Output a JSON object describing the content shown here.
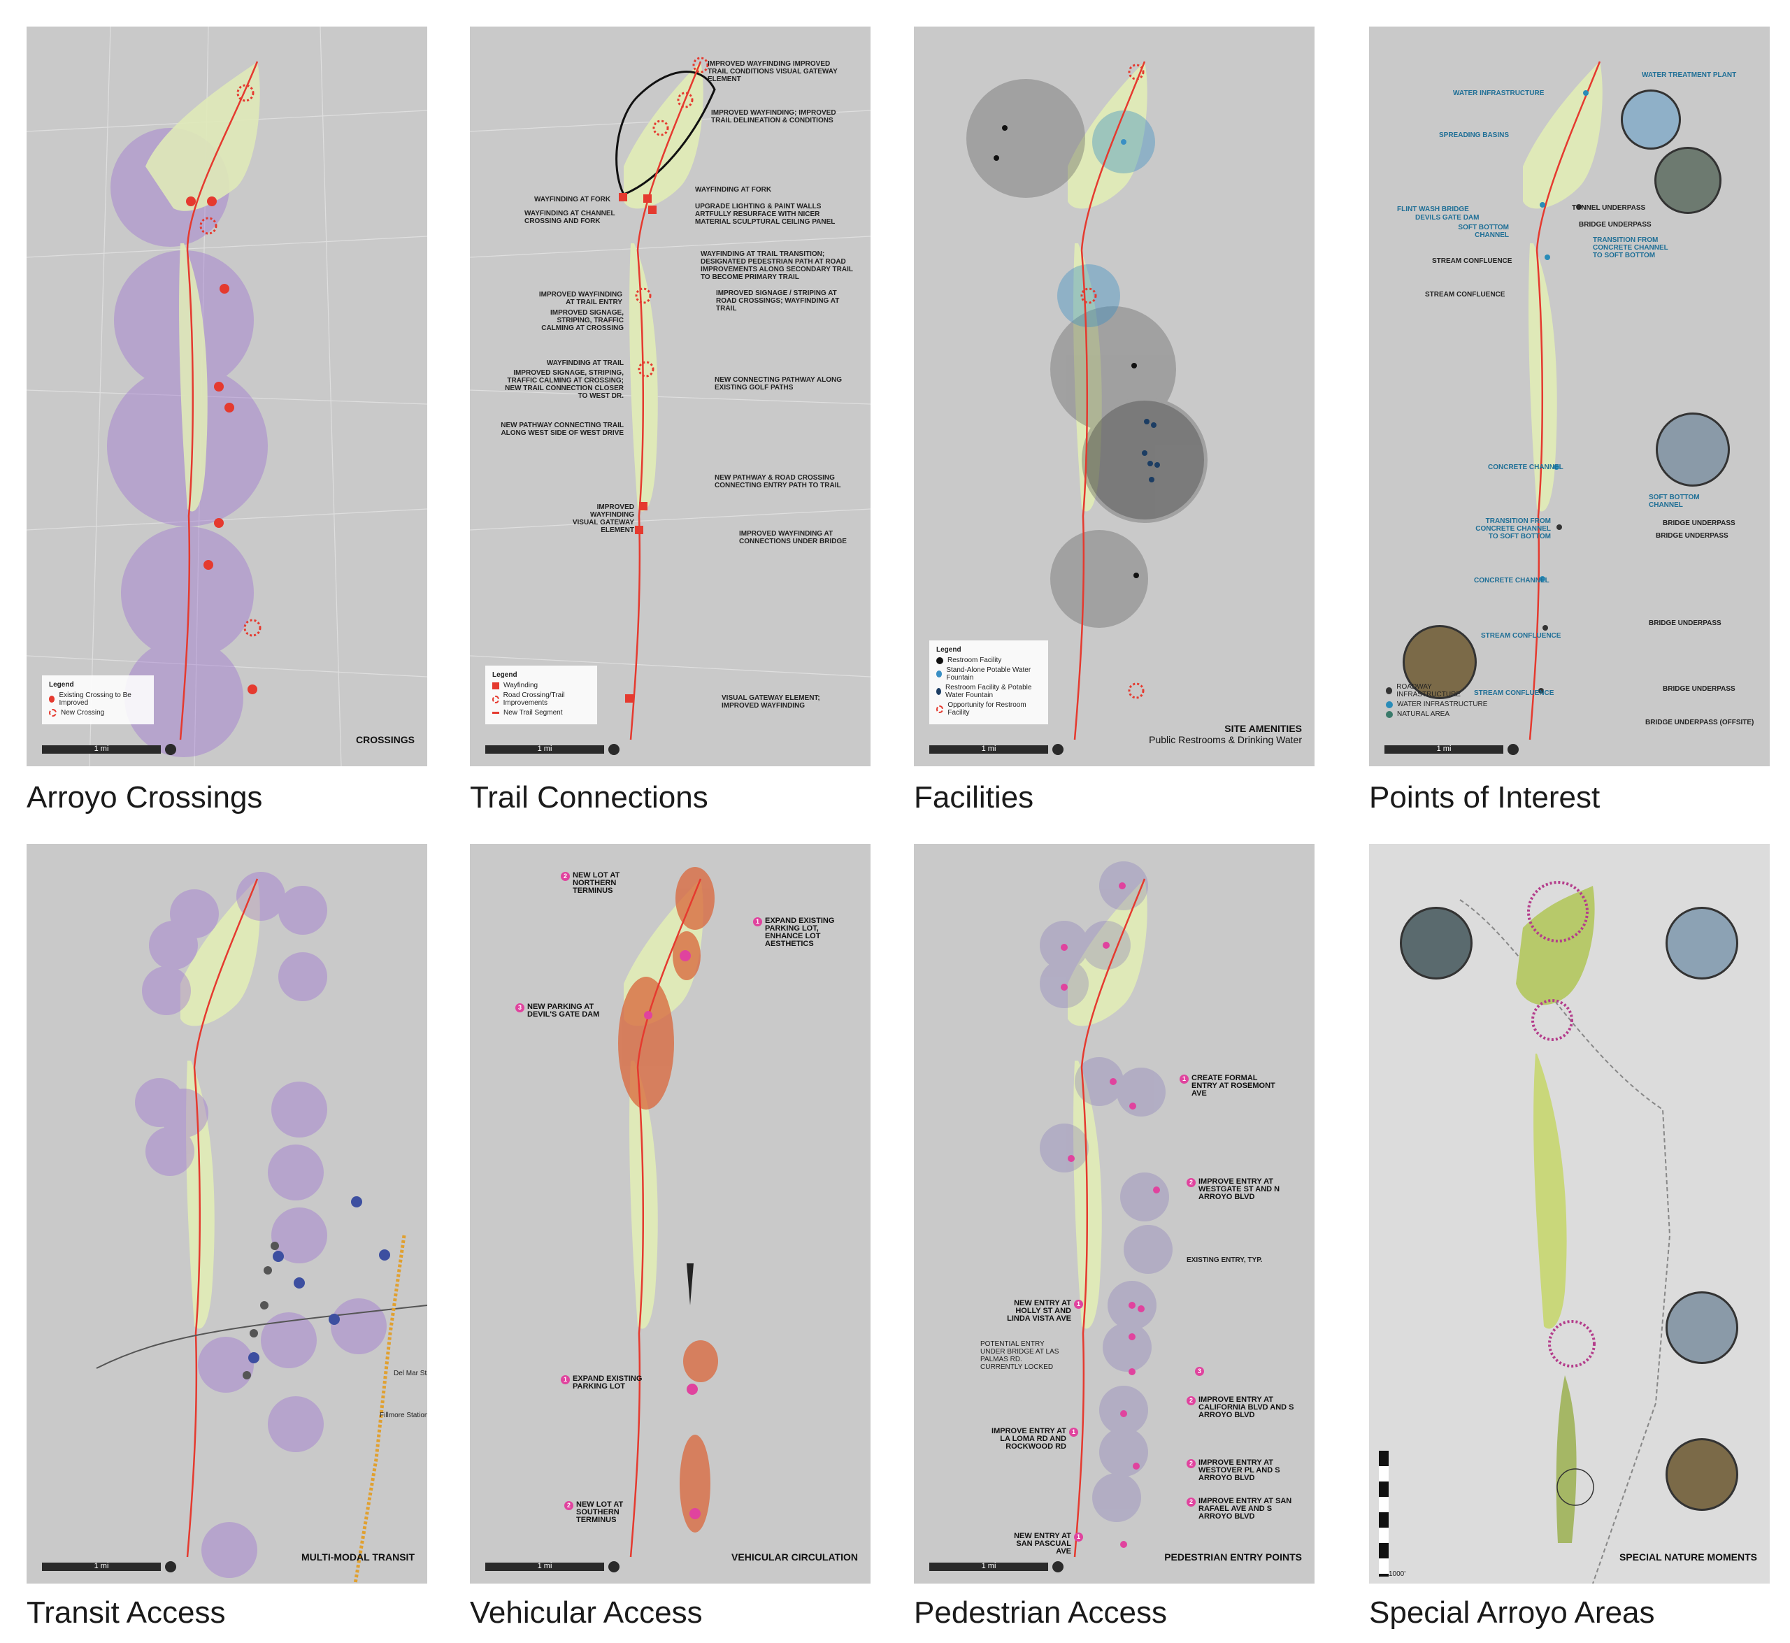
{
  "panels": [
    {
      "caption": "Arroyo Crossings",
      "title": "CROSSINGS",
      "scale": "1 mi",
      "legend": {
        "title": "Legend",
        "items": [
          {
            "label": "Existing Crossing to Be Improved",
            "color": "#e53a2f"
          },
          {
            "label": "New Crossing",
            "color": "#e53a2f"
          }
        ]
      }
    },
    {
      "caption": "Trail Connections",
      "title": "",
      "scale": "1 mi",
      "legend": {
        "title": "Legend",
        "items": [
          {
            "label": "Wayfinding",
            "color": "#e53a2f"
          },
          {
            "label": "Road Crossing/Trail Improvements",
            "color": "#e53a2f"
          },
          {
            "label": "New Trail Segment",
            "color": "#e53a2f"
          }
        ]
      },
      "annotations": [
        "IMPROVED WAYFINDING IMPROVED TRAIL CONDITIONS VISUAL GATEWAY ELEMENT",
        "IMPROVED WAYFINDING; IMPROVED TRAIL DELINEATION & CONDITIONS",
        "WAYFINDING AT FORK",
        "WAYFINDING AT FORK",
        "UPGRADE LIGHTING & PAINT WALLS ARTFULLY RESURFACE WITH NICER MATERIAL SCULPTURAL CEILING PANEL",
        "WAYFINDING AT CHANNEL CROSSING AND FORK",
        "WAYFINDING AT TRAIL TRANSITION; DESIGNATED PEDESTRIAN PATH AT ROAD IMPROVEMENTS ALONG SECONDARY TRAIL TO BECOME PRIMARY TRAIL",
        "IMPROVED WAYFINDING AT TRAIL ENTRY",
        "IMPROVED SIGNAGE, STRIPING, TRAFFIC CALMING AT CROSSING",
        "IMPROVED SIGNAGE / STRIPING AT ROAD CROSSINGS; WAYFINDING AT TRAIL",
        "WAYFINDING AT TRAIL",
        "IMPROVED SIGNAGE, STRIPING, TRAFFIC CALMING AT CROSSING; NEW TRAIL CONNECTION CLOSER TO WEST DR.",
        "NEW CONNECTING PATHWAY ALONG EXISTING GOLF PATHS",
        "NEW PATHWAY CONNECTING TRAIL ALONG WEST SIDE OF WEST DRIVE",
        "NEW PATHWAY & ROAD CROSSING CONNECTING ENTRY PATH TO TRAIL",
        "IMPROVED WAYFINDING VISUAL GATEWAY ELEMENT",
        "IMPROVED WAYFINDING AT CONNECTIONS UNDER BRIDGE",
        "VISUAL GATEWAY ELEMENT; IMPROVED WAYFINDING"
      ]
    },
    {
      "caption": "Facilities",
      "title": "SITE AMENITIES",
      "subtitle": "Public Restrooms & Drinking Water",
      "scale": "1 mi",
      "legend": {
        "title": "Legend",
        "items": [
          {
            "label": "Restroom Facility",
            "color": "#111111"
          },
          {
            "label": "Stand-Alone Potable Water Fountain",
            "color": "#3a8fc4"
          },
          {
            "label": "Restroom Facility & Potable Water Fountain",
            "color": "#1c3d63"
          },
          {
            "label": "Opportunity for Restroom Facility",
            "color": "#e53a2f"
          }
        ]
      }
    },
    {
      "caption": "Points of Interest",
      "title": "",
      "scale": "1 mi",
      "legend": {
        "items": [
          {
            "label": "ROADWAY INFRASTRUCTURE",
            "color": "#333333"
          },
          {
            "label": "WATER INFRASTRUCTURE",
            "color": "#2a8cb8"
          },
          {
            "label": "NATURAL AREA",
            "color": "#3a7a6a"
          }
        ]
      },
      "annotations_left": [
        "WATER INFRASTRUCTURE",
        "SPREADING BASINS",
        "FLINT WASH BRIDGE",
        "DEVILS GATE DAM",
        "SOFT BOTTOM CHANNEL",
        "STREAM CONFLUENCE",
        "STREAM CONFLUENCE",
        "CONCRETE CHANNEL",
        "TRANSITION FROM CONCRETE CHANNEL TO SOFT BOTTOM",
        "CONCRETE CHANNEL",
        "STREAM CONFLUENCE",
        "STREAM CONFLUENCE"
      ],
      "annotations_right": [
        "WATER TREATMENT PLANT",
        "TUNNEL UNDERPASS",
        "BRIDGE UNDERPASS",
        "TRANSITION FROM CONCRETE CHANNEL TO SOFT BOTTOM",
        "SOFT BOTTOM CHANNEL",
        "BRIDGE UNDERPASS",
        "BRIDGE UNDERPASS",
        "BRIDGE UNDERPASS",
        "BRIDGE UNDERPASS",
        "BRIDGE UNDERPASS (OFFSITE)"
      ]
    },
    {
      "caption": "Transit Access",
      "title": "MULTI-MODAL TRANSIT",
      "scale": "1 mi",
      "labels": [
        "Del Mar Station",
        "Fillmore Station"
      ]
    },
    {
      "caption": "Vehicular Access",
      "title": "VEHICULAR CIRCULATION",
      "scale": "1 mi",
      "callouts": [
        {
          "n": "2",
          "text": "NEW LOT AT NORTHERN TERMINUS"
        },
        {
          "n": "1",
          "text": "EXPAND EXISTING PARKING LOT, ENHANCE LOT AESTHETICS"
        },
        {
          "n": "3",
          "text": "NEW PARKING AT DEVIL'S GATE DAM"
        },
        {
          "n": "1",
          "text": "EXPAND EXISTING PARKING LOT"
        },
        {
          "n": "2",
          "text": "NEW LOT AT SOUTHERN TERMINUS"
        }
      ]
    },
    {
      "caption": "Pedestrian Access",
      "title": "PEDESTRIAN ENTRY POINTS",
      "scale": "1 mi",
      "callouts": [
        {
          "n": "1",
          "text": "CREATE FORMAL ENTRY AT ROSEMONT AVE"
        },
        {
          "n": "2",
          "text": "IMPROVE ENTRY AT WESTGATE ST AND N ARROYO BLVD"
        },
        {
          "n": "",
          "text": "EXISTING ENTRY, TYP."
        },
        {
          "n": "1",
          "text": "NEW ENTRY AT HOLLY ST AND LINDA VISTA AVE"
        },
        {
          "n": "",
          "text": "POTENTIAL ENTRY UNDER BRIDGE AT LAS PALMAS RD. CURRENTLY LOCKED"
        },
        {
          "n": "3",
          "text": ""
        },
        {
          "n": "2",
          "text": "IMPROVE ENTRY AT CALIFORNIA BLVD AND S ARROYO BLVD"
        },
        {
          "n": "1",
          "text": "IMPROVE ENTRY AT LA LOMA RD AND ROCKWOOD RD"
        },
        {
          "n": "2",
          "text": "IMPROVE ENTRY AT WESTOVER PL AND S ARROYO BLVD"
        },
        {
          "n": "2",
          "text": "IMPROVE ENTRY AT SAN RAFAEL AVE AND S ARROYO BLVD"
        },
        {
          "n": "1",
          "text": "NEW ENTRY AT SAN PASCUAL AVE"
        }
      ]
    },
    {
      "caption": "Special Arroyo Areas",
      "title": "SPECIAL NATURE MOMENTS",
      "scale": "1000'"
    }
  ],
  "colors": {
    "route": "#e53a2f",
    "park": "#dfe9b8",
    "purple": "#9b6fd1",
    "pink": "#e0439e",
    "blue": "#2a8cb8",
    "map": "#c9c9c9"
  }
}
